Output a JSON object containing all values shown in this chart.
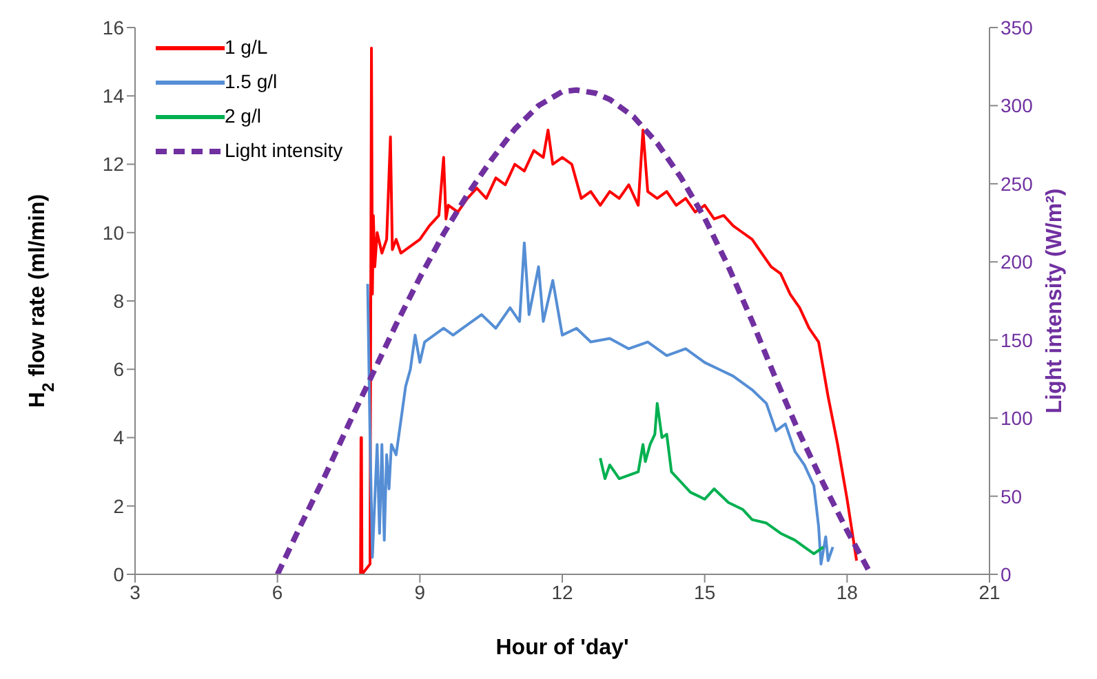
{
  "chart_data": {
    "type": "line",
    "xlabel": "Hour of 'day'",
    "ylabel": "H$_{2}$ flow rate (ml/min)",
    "y2label": "Light intensity (W/m²)",
    "xlim": [
      3,
      21
    ],
    "xticks": [
      3,
      6,
      9,
      12,
      15,
      18,
      21
    ],
    "ylim": [
      0,
      16
    ],
    "yticks": [
      0,
      2,
      4,
      6,
      8,
      10,
      12,
      14,
      16
    ],
    "y2lim": [
      0,
      350
    ],
    "y2ticks": [
      0,
      50,
      100,
      150,
      200,
      250,
      300,
      350
    ],
    "grid": false,
    "legend": "top left",
    "marker": "none",
    "series": [
      {
        "name": "1 g/L",
        "color": "#ff0000",
        "line_style": "solid",
        "x": [
          7.75,
          7.76,
          7.77,
          7.78,
          7.95,
          7.98,
          8.0,
          8.02,
          8.05,
          8.1,
          8.2,
          8.3,
          8.38,
          8.42,
          8.5,
          8.6,
          8.8,
          9.0,
          9.2,
          9.4,
          9.5,
          9.55,
          9.6,
          9.8,
          10.0,
          10.2,
          10.4,
          10.6,
          10.8,
          11.0,
          11.2,
          11.4,
          11.6,
          11.7,
          11.8,
          12.0,
          12.2,
          12.4,
          12.6,
          12.8,
          13.0,
          13.2,
          13.4,
          13.6,
          13.7,
          13.8,
          14.0,
          14.2,
          14.4,
          14.6,
          14.8,
          15.0,
          15.2,
          15.4,
          15.6,
          15.8,
          16.0,
          16.2,
          16.4,
          16.6,
          16.8,
          17.0,
          17.2,
          17.4,
          17.6,
          17.8,
          18.0,
          18.2
        ],
        "values": [
          0,
          4,
          4,
          0,
          0.3,
          15.4,
          8.2,
          10.5,
          9.0,
          10,
          9.4,
          9.8,
          12.8,
          9.5,
          9.8,
          9.4,
          9.6,
          9.8,
          10.2,
          10.5,
          12.2,
          10.4,
          10.8,
          10.6,
          11.0,
          11.3,
          11.0,
          11.6,
          11.4,
          12.0,
          11.8,
          12.4,
          12.2,
          13.0,
          12.0,
          12.2,
          12.0,
          11.0,
          11.2,
          10.8,
          11.2,
          11.0,
          11.4,
          10.8,
          13.0,
          11.2,
          11.0,
          11.2,
          10.8,
          11.0,
          10.6,
          10.8,
          10.4,
          10.5,
          10.2,
          10.0,
          9.8,
          9.4,
          9.0,
          8.8,
          8.2,
          7.8,
          7.2,
          6.8,
          5.2,
          3.8,
          2.2,
          0.4
        ]
      },
      {
        "name": "1.5 g/l",
        "color": "#558ed5",
        "line_style": "solid",
        "x": [
          7.9,
          7.95,
          8.0,
          8.1,
          8.15,
          8.2,
          8.25,
          8.3,
          8.35,
          8.4,
          8.5,
          8.6,
          8.7,
          8.8,
          8.9,
          9.0,
          9.1,
          9.3,
          9.5,
          9.7,
          10.0,
          10.3,
          10.6,
          10.9,
          11.1,
          11.2,
          11.3,
          11.5,
          11.6,
          11.8,
          12.0,
          12.3,
          12.6,
          13.0,
          13.4,
          13.8,
          14.2,
          14.6,
          15.0,
          15.3,
          15.6,
          16.0,
          16.3,
          16.5,
          16.7,
          16.9,
          17.1,
          17.3,
          17.4,
          17.45,
          17.55,
          17.6,
          17.7
        ],
        "values": [
          8.5,
          4,
          0.5,
          3.8,
          1.2,
          3.8,
          1.0,
          3.5,
          2.5,
          3.8,
          3.5,
          4.5,
          5.5,
          6.0,
          7.0,
          6.2,
          6.8,
          7.0,
          7.2,
          7.0,
          7.3,
          7.6,
          7.2,
          7.8,
          7.4,
          9.7,
          7.6,
          9.0,
          7.4,
          8.6,
          7.0,
          7.2,
          6.8,
          6.9,
          6.6,
          6.8,
          6.4,
          6.6,
          6.2,
          6.0,
          5.8,
          5.4,
          5.0,
          4.2,
          4.4,
          3.6,
          3.2,
          2.6,
          1.4,
          0.3,
          1.1,
          0.4,
          0.8
        ]
      },
      {
        "name": "2 g/l",
        "color": "#00b050",
        "line_style": "solid",
        "x": [
          12.8,
          12.9,
          13.0,
          13.2,
          13.4,
          13.6,
          13.7,
          13.75,
          13.85,
          13.95,
          14.0,
          14.1,
          14.2,
          14.3,
          14.5,
          14.7,
          15.0,
          15.2,
          15.5,
          15.8,
          16.0,
          16.3,
          16.6,
          16.9,
          17.1,
          17.3,
          17.5
        ],
        "values": [
          3.4,
          2.8,
          3.2,
          2.8,
          2.9,
          3.0,
          3.8,
          3.3,
          3.8,
          4.1,
          5.0,
          4.0,
          4.1,
          3.0,
          2.7,
          2.4,
          2.2,
          2.5,
          2.1,
          1.9,
          1.6,
          1.5,
          1.2,
          1.0,
          0.8,
          0.6,
          0.8
        ]
      },
      {
        "name": "Light intensity",
        "color": "#7030a0",
        "axis": "y2",
        "line_style": "dashed",
        "x": [
          6,
          6.5,
          7,
          7.5,
          8,
          8.5,
          9,
          9.5,
          10,
          10.5,
          11,
          11.5,
          12,
          12.3,
          12.7,
          13,
          13.5,
          14,
          14.5,
          15,
          15.5,
          16,
          16.5,
          17,
          17.5,
          18,
          18.5
        ],
        "values": [
          0,
          32,
          63,
          96,
          128,
          160,
          190,
          218,
          243,
          265,
          285,
          300,
          309,
          310,
          308,
          304,
          293,
          276,
          254,
          228,
          197,
          162,
          125,
          90,
          58,
          28,
          0
        ]
      }
    ]
  }
}
